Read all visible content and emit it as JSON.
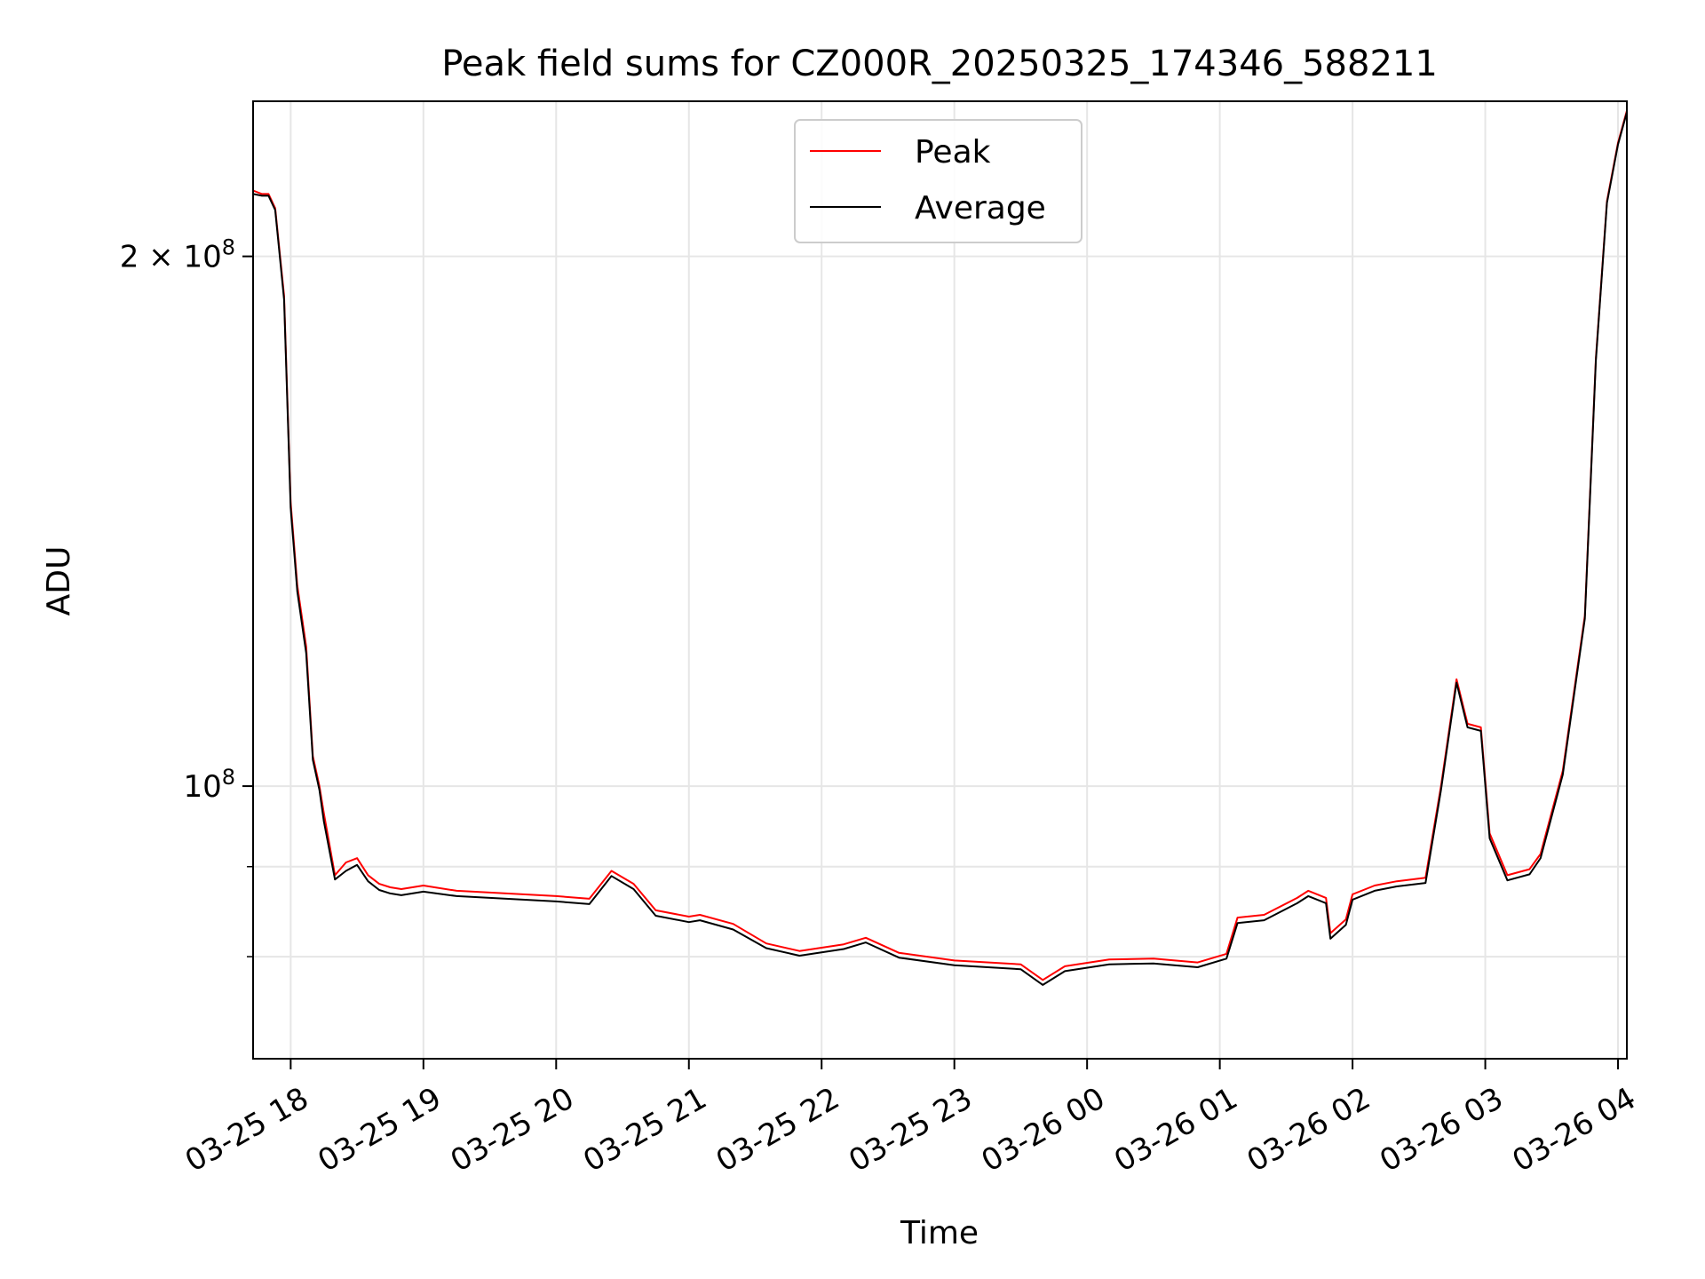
{
  "chart_data": {
    "type": "line",
    "title": "Peak field sums for CZ000R_20250325_174346_588211",
    "xlabel": "Time",
    "ylabel": "ADU",
    "y_scale": "log",
    "grid": true,
    "legend_placement": "top-center",
    "xlim": [
      "2025-03-25 17:43",
      "2025-03-26 04:04"
    ],
    "ylim": [
      70000000,
      245000000
    ],
    "x_ticks": [
      {
        "value": "2025-03-25 18:00",
        "label": "03-25 18"
      },
      {
        "value": "2025-03-25 19:00",
        "label": "03-25 19"
      },
      {
        "value": "2025-03-25 20:00",
        "label": "03-25 20"
      },
      {
        "value": "2025-03-25 21:00",
        "label": "03-25 21"
      },
      {
        "value": "2025-03-25 22:00",
        "label": "03-25 22"
      },
      {
        "value": "2025-03-25 23:00",
        "label": "03-25 23"
      },
      {
        "value": "2025-03-26 00:00",
        "label": "03-26 00"
      },
      {
        "value": "2025-03-26 01:00",
        "label": "03-26 01"
      },
      {
        "value": "2025-03-26 02:00",
        "label": "03-26 02"
      },
      {
        "value": "2025-03-26 03:00",
        "label": "03-26 03"
      },
      {
        "value": "2025-03-26 04:00",
        "label": "03-26 04"
      }
    ],
    "y_ticks_major": [
      {
        "value": 100000000,
        "base": "10",
        "exp": "8",
        "coef": ""
      },
      {
        "value": 200000000,
        "base": "10",
        "exp": "8",
        "coef": "2 × "
      }
    ],
    "y_ticks_minor": [
      80000000,
      90000000
    ],
    "x": [
      "2025-03-25 17:43",
      "2025-03-25 17:47",
      "2025-03-25 17:50",
      "2025-03-25 17:53",
      "2025-03-25 17:57",
      "2025-03-25 18:00",
      "2025-03-25 18:03",
      "2025-03-25 18:07",
      "2025-03-25 18:10",
      "2025-03-25 18:13",
      "2025-03-25 18:15",
      "2025-03-25 18:20",
      "2025-03-25 18:25",
      "2025-03-25 18:30",
      "2025-03-25 18:35",
      "2025-03-25 18:40",
      "2025-03-25 18:45",
      "2025-03-25 18:50",
      "2025-03-25 19:00",
      "2025-03-25 19:15",
      "2025-03-25 19:30",
      "2025-03-25 19:45",
      "2025-03-25 20:00",
      "2025-03-25 20:15",
      "2025-03-25 20:25",
      "2025-03-25 20:35",
      "2025-03-25 20:45",
      "2025-03-25 21:00",
      "2025-03-25 21:05",
      "2025-03-25 21:20",
      "2025-03-25 21:35",
      "2025-03-25 21:50",
      "2025-03-25 22:10",
      "2025-03-25 22:20",
      "2025-03-25 22:35",
      "2025-03-25 23:00",
      "2025-03-25 23:30",
      "2025-03-25 23:40",
      "2025-03-25 23:50",
      "2025-03-26 00:10",
      "2025-03-26 00:30",
      "2025-03-26 00:50",
      "2025-03-26 01:03",
      "2025-03-26 01:08",
      "2025-03-26 01:20",
      "2025-03-26 01:35",
      "2025-03-26 01:40",
      "2025-03-26 01:48",
      "2025-03-26 01:50",
      "2025-03-26 01:57",
      "2025-03-26 02:00",
      "2025-03-26 02:10",
      "2025-03-26 02:20",
      "2025-03-26 02:33",
      "2025-03-26 02:40",
      "2025-03-26 02:47",
      "2025-03-26 02:52",
      "2025-03-26 02:58",
      "2025-03-26 03:02",
      "2025-03-26 03:10",
      "2025-03-26 03:20",
      "2025-03-26 03:25",
      "2025-03-26 03:35",
      "2025-03-26 03:45",
      "2025-03-26 03:50",
      "2025-03-26 03:55",
      "2025-03-26 04:00",
      "2025-03-26 04:04"
    ],
    "series": [
      {
        "name": "Peak",
        "color": "#ff0000",
        "values": [
          218000000,
          217000000,
          217000000,
          213000000,
          190000000,
          145000000,
          130000000,
          120000000,
          104000000,
          100000000,
          96500000,
          89000000,
          90500000,
          91000000,
          89000000,
          88000000,
          87600000,
          87400000,
          87800000,
          87200000,
          87000000,
          86800000,
          86600000,
          86300000,
          89500000,
          88000000,
          85000000,
          84300000,
          84500000,
          83500000,
          81400000,
          80600000,
          81300000,
          82000000,
          80400000,
          79600000,
          79200000,
          77600000,
          79000000,
          79700000,
          79800000,
          79400000,
          80300000,
          84200000,
          84500000,
          86400000,
          87200000,
          86400000,
          82500000,
          84000000,
          86800000,
          87800000,
          88300000,
          88700000,
          100000000,
          115000000,
          108500000,
          108000000,
          94000000,
          89000000,
          89700000,
          91500000,
          102000000,
          125000000,
          175000000,
          215000000,
          232000000,
          242000000
        ]
      },
      {
        "name": "Average",
        "color": "#000000",
        "values": [
          217000000,
          216500000,
          216500000,
          212500000,
          189000000,
          144000000,
          129000000,
          119000000,
          103500000,
          99500000,
          95500000,
          88500000,
          89500000,
          90200000,
          88300000,
          87300000,
          86900000,
          86700000,
          87100000,
          86600000,
          86400000,
          86200000,
          86000000,
          85700000,
          88900000,
          87400000,
          84400000,
          83700000,
          83900000,
          82900000,
          80900000,
          80100000,
          80800000,
          81500000,
          79900000,
          79100000,
          78700000,
          77100000,
          78500000,
          79200000,
          79300000,
          78900000,
          79800000,
          83600000,
          83900000,
          85800000,
          86600000,
          85800000,
          81900000,
          83400000,
          86200000,
          87200000,
          87700000,
          88100000,
          99500000,
          114500000,
          108000000,
          107500000,
          93400000,
          88400000,
          89100000,
          91000000,
          101500000,
          124500000,
          174500000,
          214500000,
          231500000,
          241500000
        ]
      }
    ]
  }
}
